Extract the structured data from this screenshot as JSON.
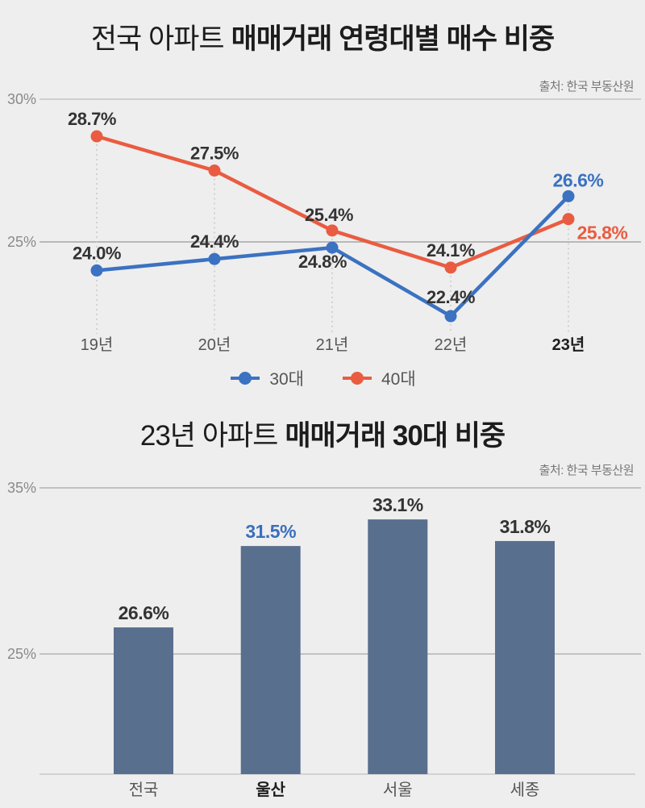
{
  "page": {
    "background": "#eeeeee",
    "gridline_color": "#bdbdbd",
    "axis_label_color": "#8a8a8a",
    "value_label_color": "#333333",
    "category_label_color": "#555555",
    "category_emph_color": "#1e1e1e"
  },
  "chart_data": [
    {
      "type": "line",
      "title_regular": "전국 아파트",
      "title_bold": "매매거래 연령대별 매수 비중",
      "source": "출처: 한국 부동산원",
      "categories": [
        "19년",
        "20년",
        "21년",
        "22년",
        "23년"
      ],
      "emph_category_index": 4,
      "series": [
        {
          "name": "30대",
          "color": "#3b72c1",
          "values": [
            24.0,
            24.4,
            24.8,
            22.4,
            26.6
          ],
          "labels": [
            "24.0%",
            "24.4%",
            "24.8%",
            "22.4%",
            "26.6%"
          ],
          "emphasis_index": 4
        },
        {
          "name": "40대",
          "color": "#e95c41",
          "values": [
            28.7,
            27.5,
            25.4,
            24.1,
            25.8
          ],
          "labels": [
            "28.7%",
            "27.5%",
            "25.4%",
            "24.1%",
            "25.8%"
          ],
          "emphasis_index": 4
        }
      ],
      "yticks": [
        {
          "label": "30%",
          "value": 30
        },
        {
          "label": "25%",
          "value": 25
        }
      ],
      "ylim": [
        21.5,
        30.5
      ],
      "grid": true,
      "legend_position": "bottom"
    },
    {
      "type": "bar",
      "title_regular": "23년 아파트",
      "title_bold": "매매거래 30대 비중",
      "source": "출처: 한국 부동산원",
      "categories": [
        "전국",
        "울산",
        "서울",
        "세종"
      ],
      "values": [
        26.6,
        31.5,
        33.1,
        31.8
      ],
      "labels": [
        "26.6%",
        "31.5%",
        "33.1%",
        "31.8%"
      ],
      "emphasis_index": 1,
      "bar_color": "#596f8e",
      "emph_label_color": "#3a6fbd",
      "yticks": [
        {
          "label": "35%",
          "value": 35
        },
        {
          "label": "25%",
          "value": 25
        }
      ],
      "ylim": [
        17.5,
        36
      ],
      "grid": true
    }
  ]
}
